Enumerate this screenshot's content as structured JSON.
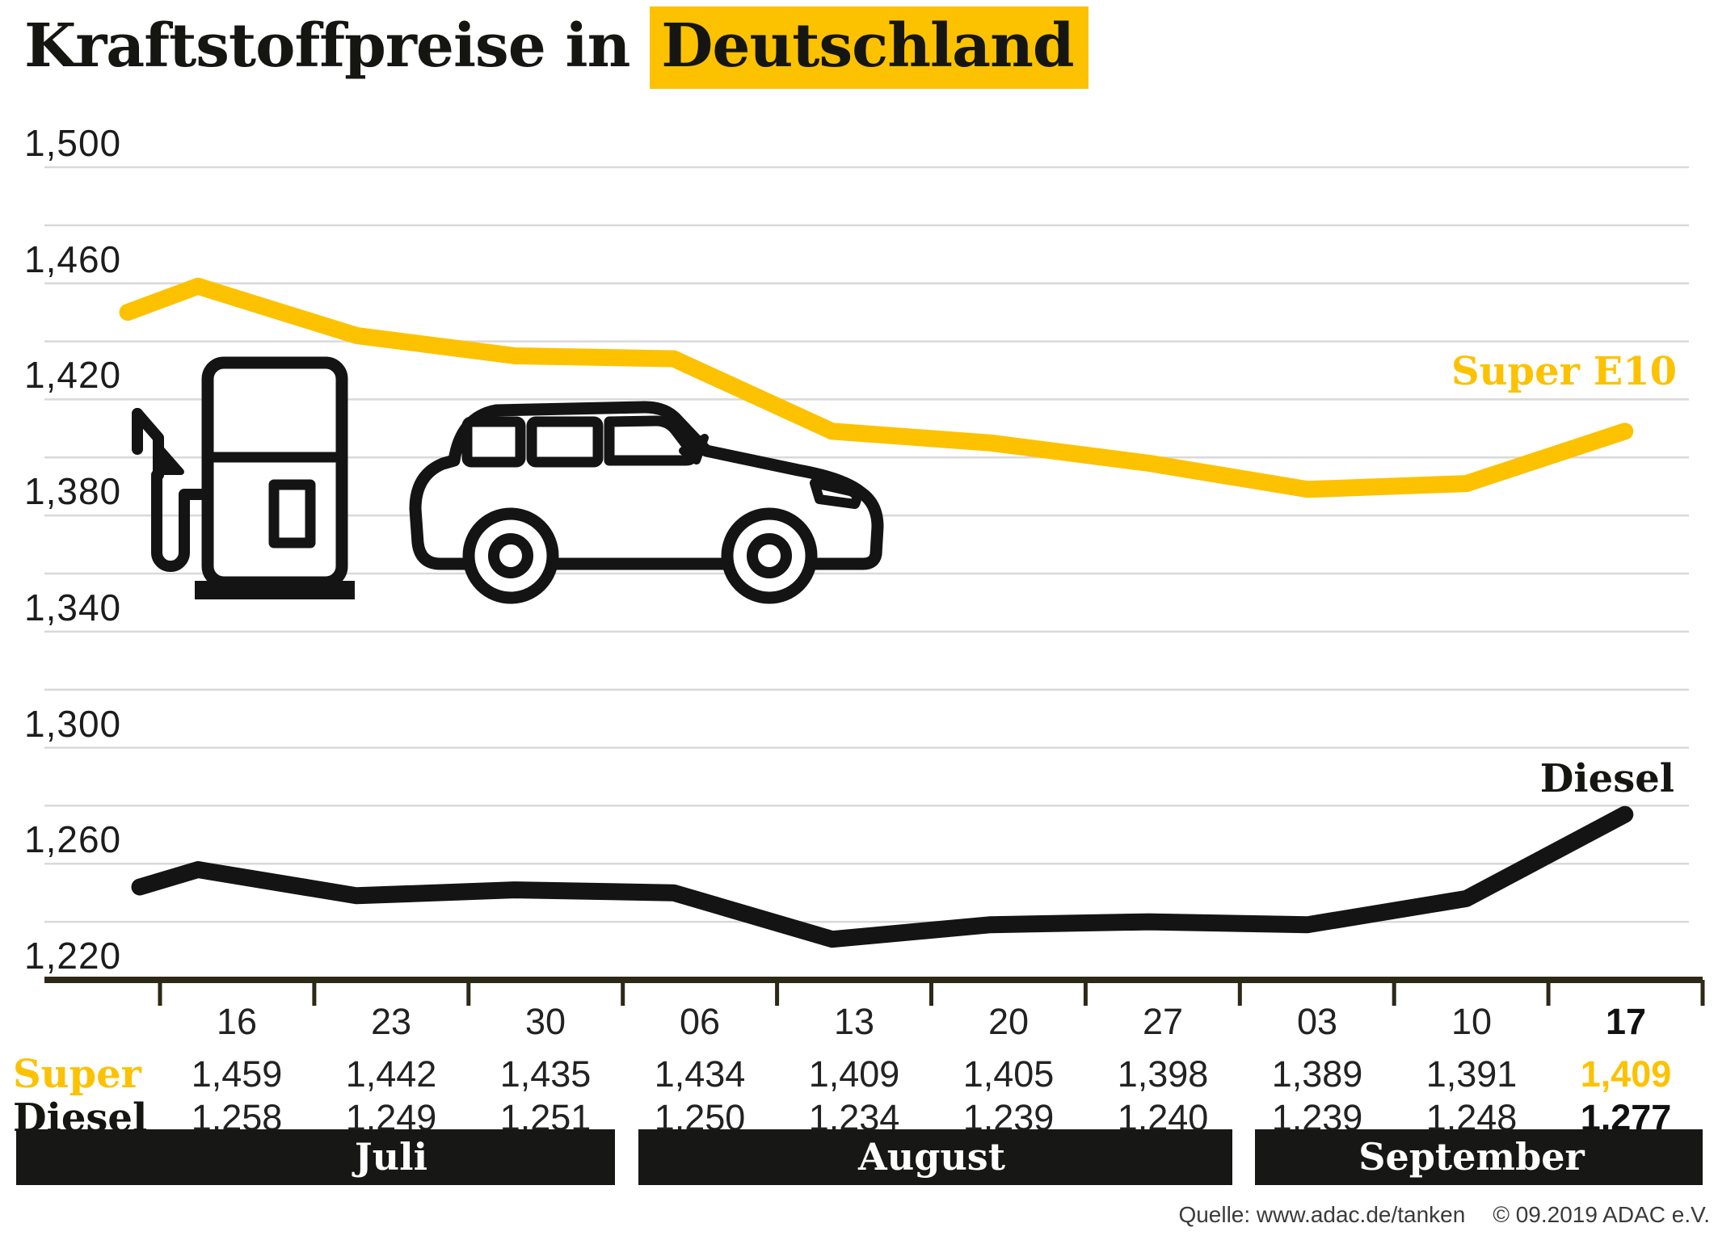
{
  "title": {
    "prefix": "Kraftstoffpreise in",
    "highlight": "Deutschland"
  },
  "colors": {
    "accent_yellow": "#fcc200",
    "line_black": "#141414",
    "band_background": "#171715",
    "axis": "#2e2917",
    "gridline": "#d9d9d9"
  },
  "chart_data": {
    "type": "line",
    "title": "Kraftstoffpreise in Deutschland",
    "xlabel": "",
    "ylabel": "",
    "x_labels": [
      "16",
      "23",
      "30",
      "06",
      "13",
      "20",
      "27",
      "03",
      "10",
      "17"
    ],
    "months": [
      {
        "label": "Juli",
        "from_col": 0,
        "to_col": 2
      },
      {
        "label": "August",
        "from_col": 3,
        "to_col": 6
      },
      {
        "label": "September",
        "from_col": 7,
        "to_col": 9
      }
    ],
    "ylim": [
      1.22,
      1.5
    ],
    "ytick_step": 0.02,
    "ytick_labels": [
      "1,220",
      "1,260",
      "1,300",
      "1,340",
      "1,380",
      "1,420",
      "1,460",
      "1,500"
    ],
    "grid": true,
    "legend_position": "inline-right",
    "series": [
      {
        "name": "Super E10",
        "color": "#fcc200",
        "lead_in_value": 1.45,
        "values": [
          1.459,
          1.442,
          1.435,
          1.434,
          1.409,
          1.405,
          1.398,
          1.389,
          1.391,
          1.409
        ]
      },
      {
        "name": "Diesel",
        "color": "#141414",
        "lead_in_value": 1.252,
        "values": [
          1.258,
          1.249,
          1.251,
          1.25,
          1.234,
          1.239,
          1.24,
          1.239,
          1.248,
          1.277
        ]
      }
    ]
  },
  "table": {
    "rows": [
      {
        "label": "Super",
        "color": "#fcc200",
        "values": [
          "1,459",
          "1,442",
          "1,435",
          "1,434",
          "1,409",
          "1,405",
          "1,398",
          "1,389",
          "1,391",
          "1,409"
        ]
      },
      {
        "label": "Diesel",
        "color": "#151512",
        "values": [
          "1,258",
          "1,249",
          "1,251",
          "1,250",
          "1,234",
          "1,239",
          "1,240",
          "1,239",
          "1,248",
          "1,277"
        ]
      }
    ]
  },
  "source": "Quelle: www.adac.de/tanken",
  "copyright": "© 09.2019  ADAC e.V."
}
